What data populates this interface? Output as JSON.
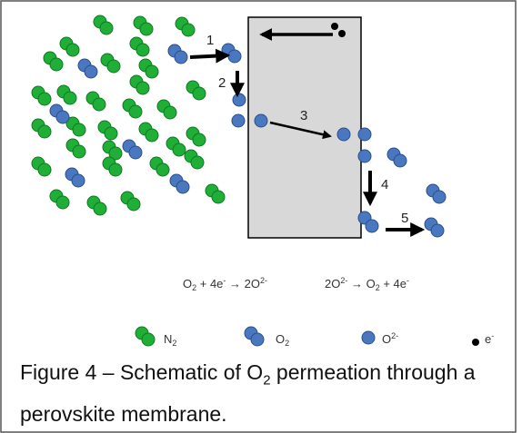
{
  "colors": {
    "n2": "#1fae36",
    "o2": "#4a78c0",
    "membrane": "#d8d8d8",
    "electron": "#000000",
    "arrow": "#000000"
  },
  "steps": [
    "1",
    "2",
    "3",
    "4",
    "5"
  ],
  "equations": {
    "left": {
      "a": "O",
      "a_sub": "2",
      "b": " + 4e",
      "b_sup": "-",
      "c": " → 2O",
      "c_sup": "2-"
    },
    "right": {
      "a": "2O",
      "a_sup": "2-",
      "b": " → O",
      "b_sub": "2",
      "c": " + 4e",
      "c_sup": "-"
    }
  },
  "legend": {
    "n2": {
      "text": "N",
      "sub": "2"
    },
    "o2": {
      "text": "O",
      "sub": "2"
    },
    "o2minus": {
      "text": "O",
      "sup": "2-"
    },
    "electron": {
      "text": "e",
      "sup": "-"
    }
  },
  "caption": {
    "prefix": "Figure 4 – Schematic of O",
    "sub": "2",
    "suffix": " permeation through a perovskite membrane."
  }
}
